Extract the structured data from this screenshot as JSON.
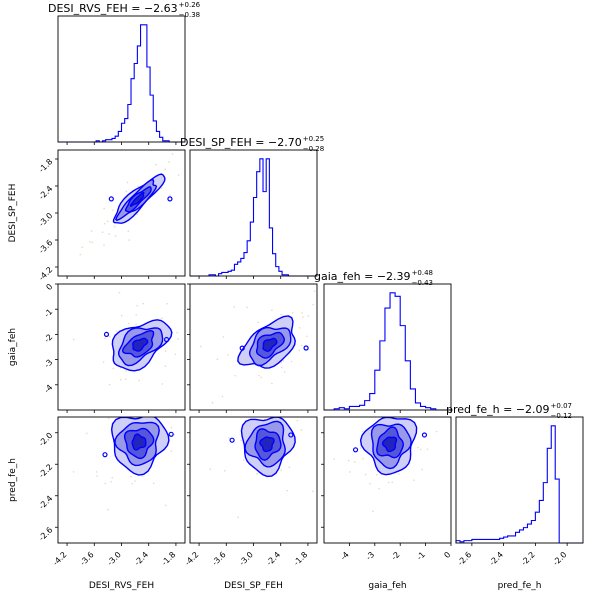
{
  "chart_data": {
    "type": "corner",
    "color": "#0000ff",
    "fill_colors": [
      "#c8c8f5",
      "#8f8fe6",
      "#4a4ad6",
      "#1a1ab8"
    ],
    "outline_color": "#000000",
    "scatter_color": "#e8d9c0",
    "variables": [
      {
        "name": "DESI_RVS_FEH",
        "xlabel": "DESI_RVS_FEH",
        "ylabel": "",
        "range": [
          -4.4,
          -1.6
        ],
        "ticks": [
          "-4.2",
          "-3.6",
          "-3.0",
          "-2.4",
          "-1.8"
        ],
        "tick_values": [
          -4.2,
          -3.6,
          -3.0,
          -2.4,
          -1.8
        ],
        "title_main": "DESI_RVS_FEH = −2.63",
        "title_sup": "+0.26",
        "title_sub": "−0.38"
      },
      {
        "name": "DESI_SP_FEH",
        "xlabel": "DESI_SP_FEH",
        "ylabel": "DESI_SP_FEH",
        "range": [
          -4.4,
          -1.6
        ],
        "ticks": [
          "-4.2",
          "-3.6",
          "-3.0",
          "-2.4",
          "-1.8"
        ],
        "tick_values": [
          -4.2,
          -3.6,
          -3.0,
          -2.4,
          -1.8
        ],
        "title_main": "DESI_SP_FEH = −2.70",
        "title_sup": "+0.25",
        "title_sub": "−0.28"
      },
      {
        "name": "gaia_feh",
        "xlabel": "gaia_feh",
        "ylabel": "gaia_feh",
        "range": [
          -5.0,
          0.0
        ],
        "ticks": [
          "-4",
          "-3",
          "-2",
          "-1",
          "0"
        ],
        "tick_values": [
          -4,
          -3,
          -2,
          -1,
          0
        ],
        "title_main": "gaia_feh = −2.39",
        "title_sup": "+0.48",
        "title_sub": "−0.43"
      },
      {
        "name": "pred_fe_h",
        "xlabel": "pred_fe_h",
        "ylabel": "pred_fe_h",
        "range": [
          -2.7,
          -1.9
        ],
        "ticks": [
          "-2.6",
          "-2.4",
          "-2.2",
          "-2.0"
        ],
        "tick_values": [
          -2.6,
          -2.4,
          -2.2,
          -2.0
        ],
        "title_main": "pred_fe_h = −2.09",
        "title_sup": "+0.07",
        "title_sub": "−0.12"
      }
    ],
    "histograms": [
      {
        "variable": "DESI_RVS_FEH",
        "bin_edges_range": [
          -4.4,
          -1.6
        ],
        "counts": [
          0,
          0,
          0,
          0,
          0,
          0,
          0,
          0,
          0,
          0,
          0,
          0,
          1,
          0,
          1,
          2,
          2,
          3,
          5,
          9,
          16,
          20,
          32,
          54,
          67,
          82,
          100,
          100,
          64,
          40,
          18,
          9,
          4,
          1,
          1,
          0,
          0,
          0,
          0,
          0
        ]
      },
      {
        "variable": "DESI_SP_FEH",
        "bin_edges_range": [
          -4.4,
          -1.6
        ],
        "counts": [
          0,
          0,
          0,
          0,
          0,
          0,
          1,
          1,
          0,
          2,
          3,
          3,
          4,
          5,
          10,
          12,
          15,
          20,
          30,
          46,
          67,
          89,
          100,
          72,
          100,
          41,
          19,
          8,
          4,
          1,
          1,
          0,
          0,
          0,
          0,
          0,
          0,
          0,
          0,
          0
        ]
      },
      {
        "variable": "gaia_feh",
        "bin_edges_range": [
          -5.0,
          0.0
        ],
        "counts": [
          0,
          0,
          1,
          2,
          1,
          3,
          3,
          4,
          8,
          14,
          34,
          59,
          87,
          100,
          97,
          72,
          42,
          18,
          6,
          3,
          2,
          1,
          0,
          0,
          0
        ]
      },
      {
        "variable": "pred_fe_h",
        "bin_edges_range": [
          -2.7,
          -1.9
        ],
        "counts": [
          2,
          1,
          2,
          2,
          3,
          3,
          3,
          3,
          3,
          3,
          3,
          4,
          5,
          6,
          6,
          9,
          11,
          13,
          16,
          19,
          26,
          36,
          51,
          80,
          99,
          54,
          0,
          0,
          0,
          0,
          0,
          0
        ]
      }
    ],
    "contour_panels": [
      {
        "x": "DESI_RVS_FEH",
        "y": "DESI_SP_FEH",
        "center": [
          -2.64,
          -2.7
        ],
        "sx": 0.28,
        "sy": 0.27,
        "rho": 0.88
      },
      {
        "x": "DESI_RVS_FEH",
        "y": "gaia_feh",
        "center": [
          -2.6,
          -2.4
        ],
        "sx": 0.32,
        "sy": 0.48,
        "rho": 0.45
      },
      {
        "x": "DESI_SP_FEH",
        "y": "gaia_feh",
        "center": [
          -2.65,
          -2.4
        ],
        "sx": 0.3,
        "sy": 0.48,
        "rho": 0.45
      },
      {
        "x": "DESI_RVS_FEH",
        "y": "pred_fe_h",
        "center": [
          -2.62,
          -2.06
        ],
        "sx": 0.3,
        "sy": 0.09,
        "rho": 0.05
      },
      {
        "x": "DESI_SP_FEH",
        "y": "pred_fe_h",
        "center": [
          -2.7,
          -2.07
        ],
        "sx": 0.28,
        "sy": 0.09,
        "rho": 0.05
      },
      {
        "x": "gaia_feh",
        "y": "pred_fe_h",
        "center": [
          -2.4,
          -2.07
        ],
        "sx": 0.5,
        "sy": 0.09,
        "rho": 0.05
      }
    ]
  }
}
